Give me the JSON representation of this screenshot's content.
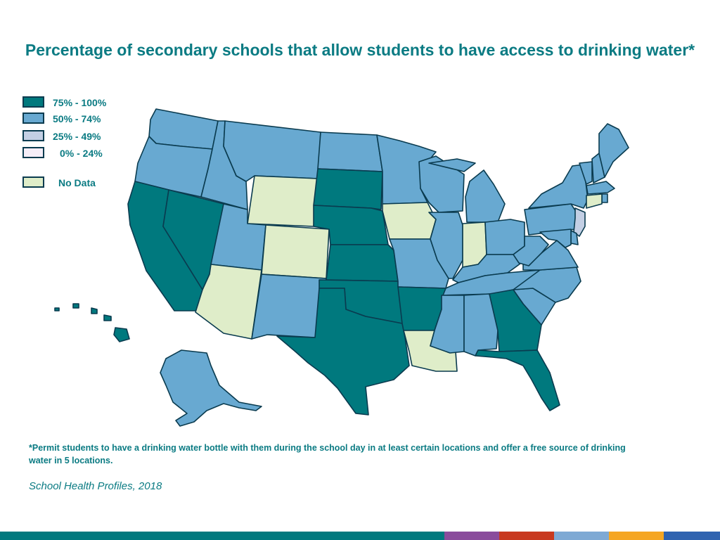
{
  "title": "Percentage of secondary schools that allow students to have access to drinking water*",
  "legend": [
    {
      "label": "75% - 100%",
      "color": "#00797e"
    },
    {
      "label": "50% - 74%",
      "color": "#68a9d1"
    },
    {
      "label": "25% - 49%",
      "color": "#c3cfe4"
    },
    {
      "label": "0% - 24%",
      "color": "#f5eef8"
    },
    {
      "label": "No Data",
      "color": "#dfedc9"
    }
  ],
  "states": {
    "WA": "50% - 74%",
    "OR": "50% - 74%",
    "CA": "75% - 100%",
    "NV": "75% - 100%",
    "ID": "50% - 74%",
    "MT": "50% - 74%",
    "WY": "No Data",
    "UT": "50% - 74%",
    "AZ": "No Data",
    "CO": "No Data",
    "NM": "50% - 74%",
    "ND": "50% - 74%",
    "SD": "75% - 100%",
    "NE": "75% - 100%",
    "KS": "75% - 100%",
    "OK": "75% - 100%",
    "TX": "75% - 100%",
    "MN": "50% - 74%",
    "IA": "No Data",
    "MO": "50% - 74%",
    "AR": "75% - 100%",
    "LA": "No Data",
    "WI": "50% - 74%",
    "IL": "50% - 74%",
    "MI": "50% - 74%",
    "IN": "No Data",
    "OH": "50% - 74%",
    "KY": "50% - 74%",
    "TN": "50% - 74%",
    "MS": "50% - 74%",
    "AL": "50% - 74%",
    "GA": "75% - 100%",
    "FL": "75% - 100%",
    "SC": "50% - 74%",
    "NC": "50% - 74%",
    "VA": "50% - 74%",
    "WV": "50% - 74%",
    "PA": "50% - 74%",
    "NY": "50% - 74%",
    "VT": "50% - 74%",
    "NH": "50% - 74%",
    "ME": "50% - 74%",
    "MA": "50% - 74%",
    "RI": "50% - 74%",
    "CT": "No Data",
    "NJ": "25% - 49%",
    "DE": "50% - 74%",
    "MD": "50% - 74%",
    "AK": "50% - 74%",
    "HI": "75% - 100%"
  },
  "footnote": "*Permit students to have a drinking water bottle with them during the school day in at least certain locations and offer a free source of drinking water in 5 locations.",
  "source": "School Health Profiles, 2018",
  "border_color": "#0a3b4f",
  "footer_colors": [
    "#00797e",
    "#8a4c9c",
    "#c8391f",
    "#7ea9d4",
    "#f5a623",
    "#2f63b0"
  ]
}
